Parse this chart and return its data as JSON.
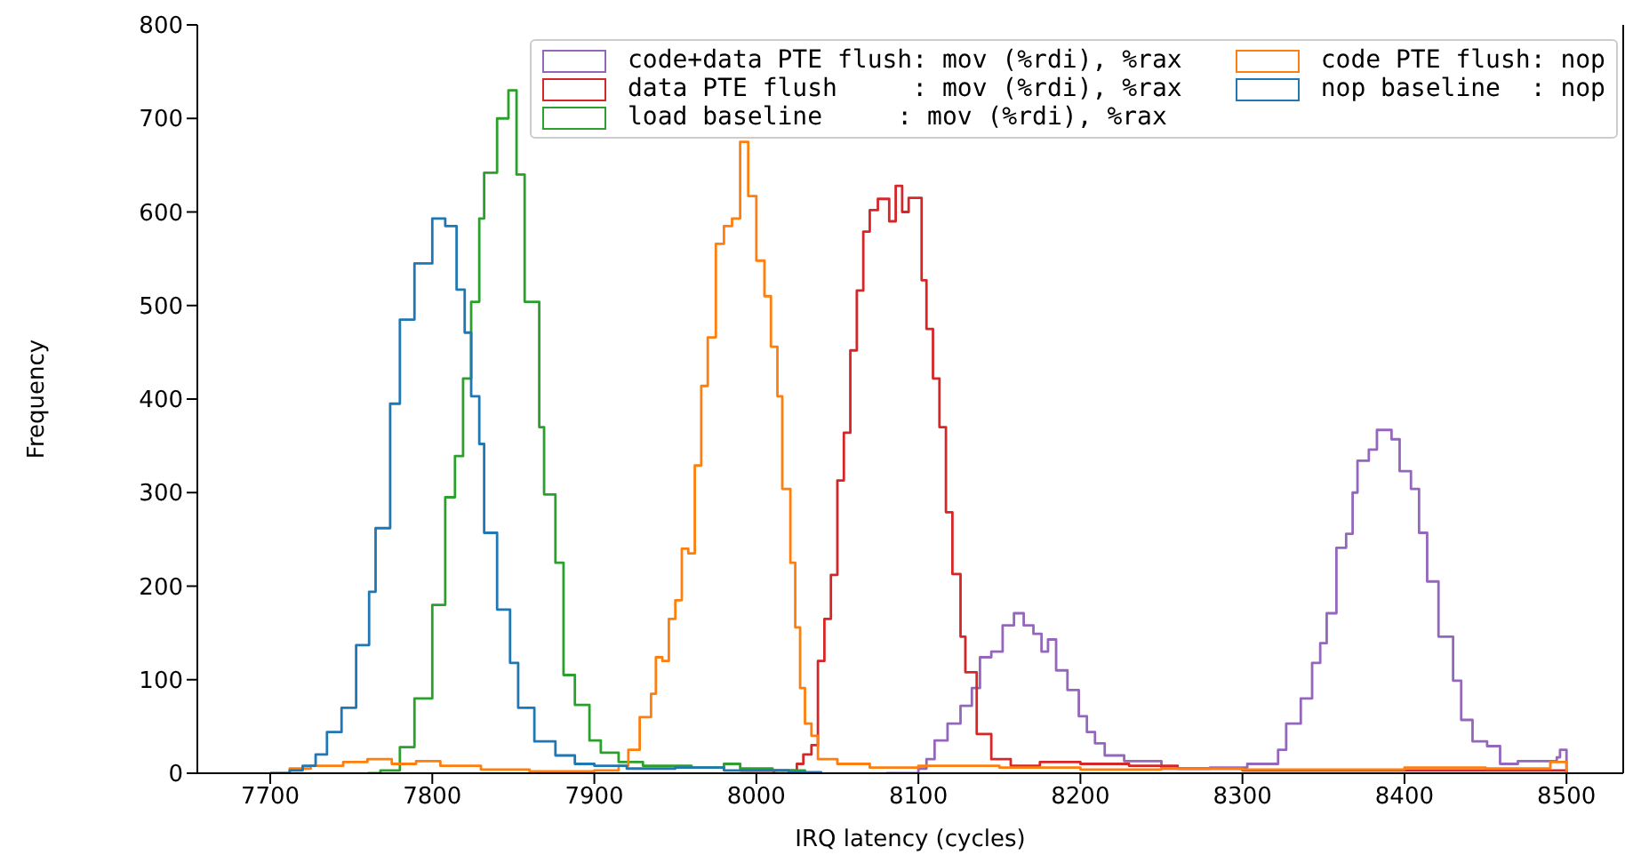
{
  "chart_data": {
    "type": "step",
    "xlabel": "IRQ latency (cycles)",
    "ylabel": "Frequency",
    "xlim": [
      7655,
      8535
    ],
    "ylim": [
      0,
      800
    ],
    "xticks": [
      7700,
      7800,
      7900,
      8000,
      8100,
      8200,
      8300,
      8400,
      8500
    ],
    "yticks": [
      0,
      100,
      200,
      300,
      400,
      500,
      600,
      700,
      800
    ],
    "legend": "top right",
    "series": [
      {
        "name": "code+data PTE flush: mov (%rdi), %rax",
        "color": "#9467bd",
        "x": [
          8080,
          8100,
          8105,
          8110,
          8118,
          8126,
          8133,
          8138,
          8145,
          8152,
          8159,
          8165,
          8171,
          8176,
          8180,
          8185,
          8192,
          8199,
          8204,
          8209,
          8215,
          8227,
          8250,
          8280,
          8303,
          8322,
          8327,
          8336,
          8343,
          8348,
          8352,
          8358,
          8364,
          8368,
          8371,
          8378,
          8383,
          8392,
          8397,
          8404,
          8409,
          8414,
          8421,
          8430,
          8435,
          8442,
          8451,
          8459,
          8470,
          8494,
          8496,
          8500
        ],
        "values": [
          0,
          5,
          15,
          35,
          53,
          72,
          91,
          124,
          130,
          158,
          171,
          158,
          149,
          130,
          143,
          110,
          89,
          61,
          44,
          32,
          19,
          13,
          5,
          6,
          10,
          25,
          53,
          80,
          118,
          139,
          171,
          241,
          256,
          300,
          334,
          346,
          367,
          357,
          323,
          304,
          257,
          205,
          146,
          99,
          57,
          34,
          29,
          10,
          13,
          17,
          25,
          0
        ]
      },
      {
        "name": "data PTE flush     : mov (%rdi), %rax",
        "color": "#d62728",
        "x": [
          7990,
          8011,
          8025,
          8029,
          8034,
          8038,
          8042,
          8046,
          8050,
          8054,
          8058,
          8062,
          8066,
          8070,
          8075,
          8082,
          8086,
          8090,
          8094,
          8102,
          8105,
          8109,
          8113,
          8117,
          8121,
          8126,
          8129,
          8136,
          8145,
          8157,
          8175,
          8200,
          8230,
          8260,
          8300,
          8400,
          8500
        ],
        "values": [
          0,
          3,
          10,
          20,
          30,
          120,
          165,
          212,
          313,
          364,
          452,
          516,
          579,
          602,
          614,
          590,
          628,
          600,
          615,
          527,
          475,
          422,
          370,
          279,
          213,
          146,
          108,
          42,
          15,
          8,
          12,
          10,
          8,
          5,
          3,
          3,
          0
        ]
      },
      {
        "name": "load baseline     : mov (%rdi), %rax",
        "color": "#2ca02c",
        "x": [
          7760,
          7768,
          7780,
          7789,
          7800,
          7808,
          7814,
          7819,
          7824,
          7829,
          7832,
          7840,
          7847,
          7852,
          7857,
          7866,
          7869,
          7876,
          7881,
          7888,
          7897,
          7904,
          7915,
          7930,
          7960,
          7980,
          7990,
          8010,
          8030
        ],
        "values": [
          0,
          3,
          28,
          80,
          180,
          295,
          339,
          422,
          504,
          593,
          642,
          700,
          730,
          640,
          504,
          370,
          298,
          225,
          105,
          73,
          35,
          22,
          12,
          8,
          6,
          10,
          5,
          3,
          0
        ]
      },
      {
        "name": "code PTE flush: nop",
        "color": "#ff7f0e",
        "x": [
          7700,
          7712,
          7725,
          7745,
          7760,
          7775,
          7790,
          7805,
          7830,
          7860,
          7900,
          7915,
          7921,
          7928,
          7935,
          7938,
          7942,
          7946,
          7950,
          7954,
          7958,
          7962,
          7966,
          7970,
          7975,
          7980,
          7985,
          7990,
          7995,
          8000,
          8005,
          8009,
          8013,
          8016,
          8021,
          8024,
          8027,
          8030,
          8034,
          8038,
          8050,
          8070,
          8100,
          8150,
          8200,
          8250,
          8300,
          8350,
          8400,
          8450,
          8490,
          8500
        ],
        "values": [
          0,
          5,
          8,
          12,
          15,
          10,
          13,
          8,
          4,
          2,
          3,
          8,
          25,
          60,
          85,
          124,
          120,
          165,
          185,
          240,
          235,
          329,
          414,
          466,
          566,
          585,
          593,
          675,
          617,
          548,
          510,
          456,
          403,
          304,
          225,
          156,
          91,
          53,
          40,
          15,
          10,
          6,
          8,
          6,
          4,
          5,
          4,
          4,
          6,
          5,
          12,
          0
        ]
      },
      {
        "name": "nop baseline  : nop",
        "color": "#1f77b4",
        "x": [
          7700,
          7712,
          7720,
          7728,
          7735,
          7744,
          7753,
          7761,
          7765,
          7774,
          7780,
          7789,
          7800,
          7808,
          7815,
          7820,
          7824,
          7829,
          7832,
          7840,
          7848,
          7853,
          7863,
          7876,
          7888,
          7900,
          7920,
          7950,
          7980,
          8000,
          8020,
          8040
        ],
        "values": [
          0,
          3,
          8,
          20,
          44,
          70,
          137,
          194,
          262,
          395,
          485,
          545,
          593,
          585,
          517,
          471,
          403,
          352,
          257,
          175,
          118,
          70,
          34,
          19,
          10,
          8,
          5,
          6,
          3,
          3,
          1,
          0
        ]
      }
    ]
  }
}
